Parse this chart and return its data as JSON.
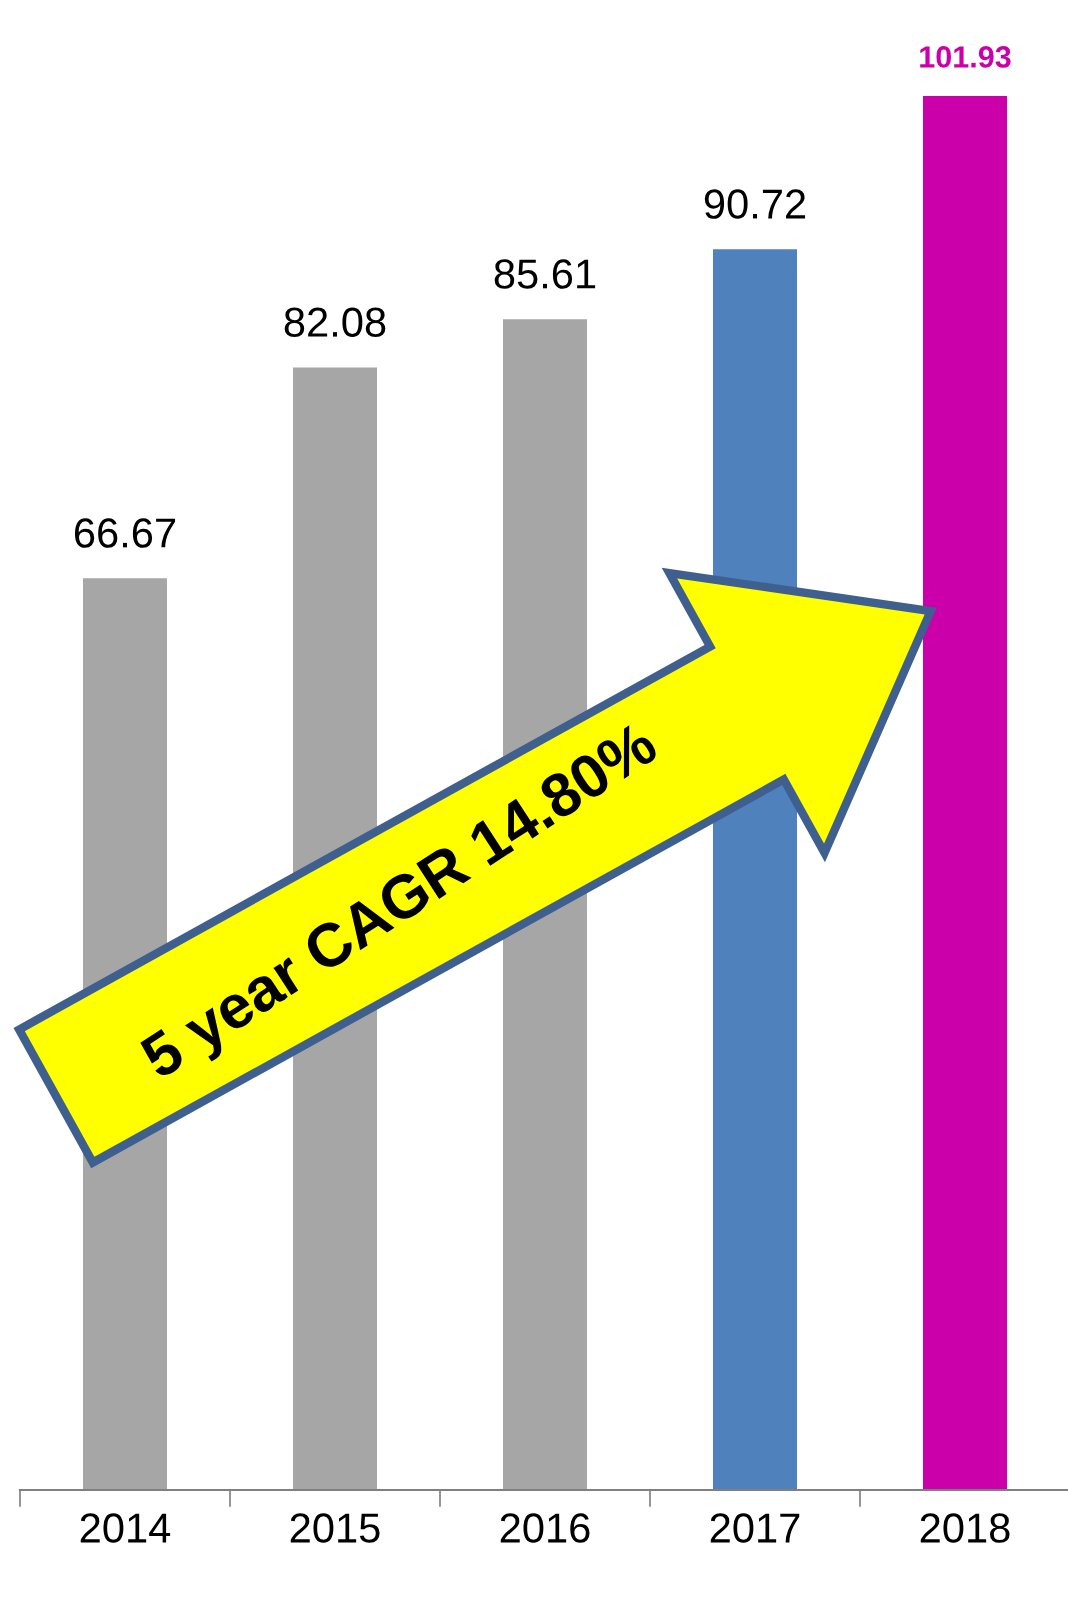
{
  "chart_data": {
    "type": "bar",
    "categories": [
      "2014",
      "2015",
      "2016",
      "2017",
      "2018"
    ],
    "values": [
      66.67,
      82.08,
      85.61,
      90.72,
      101.93
    ],
    "colors": [
      "#a6a6a6",
      "#a6a6a6",
      "#a6a6a6",
      "#4f81bd",
      "#cc00aa"
    ],
    "data_labels": true,
    "grid": false,
    "annotations": [
      "5 year CAGR 14.80%"
    ]
  }
}
